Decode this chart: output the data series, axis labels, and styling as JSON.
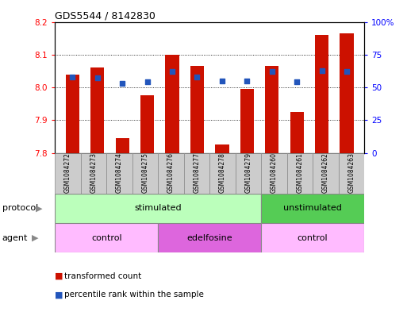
{
  "title": "GDS5544 / 8142830",
  "samples": [
    "GSM1084272",
    "GSM1084273",
    "GSM1084274",
    "GSM1084275",
    "GSM1084276",
    "GSM1084277",
    "GSM1084278",
    "GSM1084279",
    "GSM1084260",
    "GSM1084261",
    "GSM1084262",
    "GSM1084263"
  ],
  "transformed_count": [
    8.04,
    8.06,
    7.845,
    7.975,
    8.1,
    8.065,
    7.825,
    7.995,
    8.065,
    7.925,
    8.16,
    8.165
  ],
  "percentile_rank": [
    58,
    57,
    53,
    54,
    62,
    58,
    55,
    55,
    62,
    54,
    63,
    62
  ],
  "ylim_left": [
    7.8,
    8.2
  ],
  "ylim_right": [
    0,
    100
  ],
  "yticks_left": [
    7.8,
    7.9,
    8.0,
    8.1,
    8.2
  ],
  "yticks_right": [
    0,
    25,
    50,
    75,
    100
  ],
  "bar_color": "#cc1100",
  "dot_color": "#2255bb",
  "bar_width": 0.55,
  "protocol_stim_color": "#bbffbb",
  "protocol_unstim_color": "#55cc55",
  "agent_control_color": "#ffbbff",
  "agent_edel_color": "#dd66dd",
  "sample_cell_color": "#cccccc",
  "legend_bar_label": "transformed count",
  "legend_dot_label": "percentile rank within the sample"
}
